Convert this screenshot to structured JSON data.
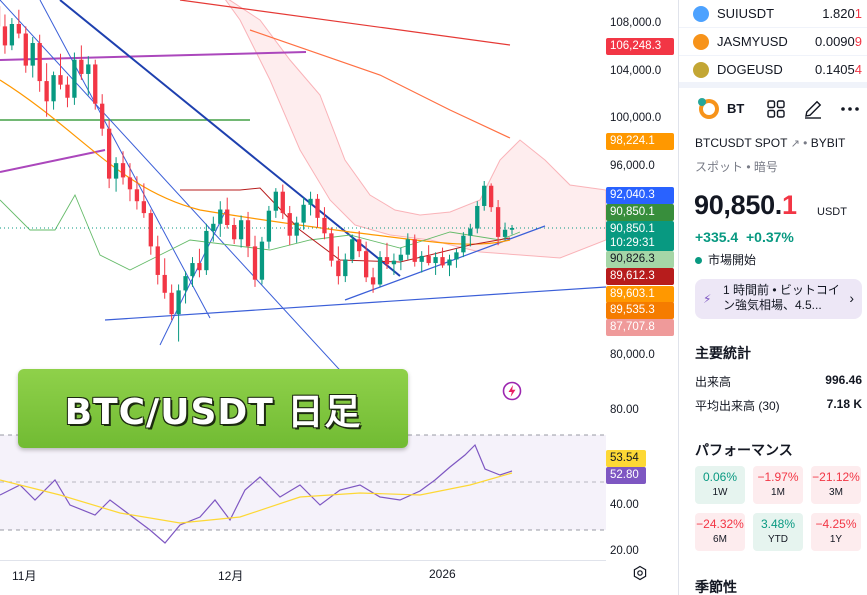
{
  "watchlist": [
    {
      "symbol": "SUIUSDT",
      "price_main": "1.820",
      "price_tail": "1",
      "icon": "sui-logo-icon",
      "color": "#4da2ff"
    },
    {
      "symbol": "JASMYUSD",
      "price_main": "0.0090",
      "price_tail": "9",
      "icon": "jasmy-logo-icon",
      "color": "#f7931a"
    },
    {
      "symbol": "DOGEUSD",
      "price_main": "0.1405",
      "price_tail": "4",
      "icon": "doge-logo-icon",
      "color": "#c3a634"
    }
  ],
  "symbol": {
    "short": "BT",
    "full": "BTCUSDT SPOT",
    "exchange": "BYBIT",
    "subtitle": "スポット • 暗号",
    "price_main": "90,850.",
    "price_tail": "1",
    "currency": "USDT",
    "change": "+335.4",
    "change_pct": "+0.37%",
    "market_status": "市場開始"
  },
  "news": {
    "text": "1 時間前 • ビットコイン強気相場、4.5..."
  },
  "key_stats": {
    "title": "主要統計",
    "rows": [
      {
        "label": "出来高",
        "value": "996.46"
      },
      {
        "label": "平均出来高 (30)",
        "value": "7.18 K"
      }
    ]
  },
  "performance": {
    "title": "パフォーマンス",
    "tiles": [
      {
        "value": "0.06%",
        "label": "1W",
        "dir": "pos"
      },
      {
        "value": "−1.97%",
        "label": "1M",
        "dir": "neg"
      },
      {
        "value": "−21.12%",
        "label": "3M",
        "dir": "neg"
      },
      {
        "value": "−24.32%",
        "label": "6M",
        "dir": "neg"
      },
      {
        "value": "3.48%",
        "label": "YTD",
        "dir": "pos"
      },
      {
        "value": "−4.25%",
        "label": "1Y",
        "dir": "neg"
      }
    ]
  },
  "seasonality": {
    "title": "季節性"
  },
  "overlay_title": "BTC/USDT 日足",
  "price_axis": {
    "ticks": [
      "108,000.0",
      "104,000.0",
      "100,000.0",
      "96,000.0",
      "80,000.0"
    ],
    "badges": [
      {
        "text": "106,248.3",
        "color": "#f23645"
      },
      {
        "text": "98,224.1",
        "color": "#ff9800"
      },
      {
        "text": "92,040.3",
        "color": "#2962ff"
      },
      {
        "text": "90,850.1",
        "color": "#388e3c"
      },
      {
        "text": "90,850.1",
        "text2": "10:29:31",
        "color": "#089981"
      },
      {
        "text": "90,826.3",
        "color": "#a5d6a7",
        "dark": true
      },
      {
        "text": "89,612.3",
        "color": "#b71c1c"
      },
      {
        "text": "89,603.1",
        "color": "#ff9800"
      },
      {
        "text": "89,535.3",
        "color": "#f57c00"
      },
      {
        "text": "87,707.8",
        "color": "#ef9a9a"
      }
    ]
  },
  "rsi_axis": {
    "ticks": [
      "80.00",
      "40.00",
      "20.00"
    ],
    "badges": [
      {
        "text": "53.54",
        "color": "#fdd835",
        "dark": true
      },
      {
        "text": "52.80",
        "color": "#7e57c2"
      }
    ]
  },
  "time_axis": [
    "11月",
    "12月",
    "2026"
  ],
  "chart_data": {
    "type": "candlestick",
    "ylim": [
      76000,
      110000
    ],
    "price_ticks": [
      108000,
      104000,
      100000,
      96000,
      80000
    ],
    "x_labels": [
      "11月",
      "12月",
      "2026"
    ],
    "candles": [
      [
        109500,
        110000,
        107000,
        107800
      ],
      [
        107800,
        108800,
        105500,
        106200
      ],
      [
        106200,
        108500,
        105800,
        108000
      ],
      [
        108000,
        109200,
        106800,
        107200
      ],
      [
        107200,
        107800,
        103900,
        104500
      ],
      [
        104500,
        106900,
        103500,
        106400
      ],
      [
        106400,
        107100,
        102300,
        103200
      ],
      [
        103200,
        104700,
        100200,
        101500
      ],
      [
        101500,
        104000,
        100800,
        103700
      ],
      [
        103700,
        105500,
        102500,
        102900
      ],
      [
        102900,
        103600,
        101000,
        101800
      ],
      [
        101800,
        105600,
        101200,
        105000
      ],
      [
        105000,
        106200,
        103300,
        103800
      ],
      [
        103800,
        105300,
        102000,
        104600
      ],
      [
        104600,
        105000,
        100800,
        101300
      ],
      [
        101300,
        102100,
        98600,
        99200
      ],
      [
        99200,
        99900,
        94200,
        95000
      ],
      [
        95000,
        96800,
        93900,
        96300
      ],
      [
        96300,
        97300,
        94500,
        95100
      ],
      [
        95100,
        96300,
        93100,
        94100
      ],
      [
        94100,
        95200,
        92400,
        93100
      ],
      [
        93100,
        94600,
        91700,
        92100
      ],
      [
        92100,
        92400,
        88600,
        89300
      ],
      [
        89300,
        90200,
        86100,
        86900
      ],
      [
        86900,
        88300,
        84900,
        85400
      ],
      [
        85400,
        86100,
        83100,
        83600
      ],
      [
        83600,
        86100,
        81300,
        85600
      ],
      [
        85600,
        87200,
        84500,
        86800
      ],
      [
        86800,
        88400,
        85900,
        87900
      ],
      [
        87900,
        89100,
        86700,
        87300
      ],
      [
        87300,
        91200,
        86900,
        90600
      ],
      [
        90600,
        91800,
        89700,
        91200
      ],
      [
        91200,
        93100,
        90100,
        92400
      ],
      [
        92400,
        93400,
        90800,
        91100
      ],
      [
        91100,
        91700,
        89500,
        89900
      ],
      [
        89900,
        91900,
        89200,
        91500
      ],
      [
        91500,
        92200,
        88400,
        89300
      ],
      [
        89300,
        90200,
        85900,
        86500
      ],
      [
        86500,
        90100,
        86100,
        89700
      ],
      [
        89700,
        92700,
        89100,
        92300
      ],
      [
        92300,
        94200,
        91700,
        93900
      ],
      [
        93900,
        94500,
        91600,
        92100
      ],
      [
        92100,
        92700,
        89400,
        90200
      ],
      [
        90200,
        91800,
        89600,
        91300
      ],
      [
        91300,
        93400,
        90700,
        92800
      ],
      [
        92800,
        93900,
        91900,
        93300
      ],
      [
        93300,
        93700,
        90900,
        91700
      ],
      [
        91700,
        92600,
        89900,
        90400
      ],
      [
        90400,
        90900,
        87600,
        88100
      ],
      [
        88100,
        89300,
        86100,
        86800
      ],
      [
        86800,
        88700,
        86300,
        88200
      ],
      [
        88200,
        90300,
        87900,
        89900
      ],
      [
        89900,
        90600,
        88400,
        88900
      ],
      [
        88900,
        89700,
        86300,
        86700
      ],
      [
        86700,
        87500,
        85400,
        86100
      ],
      [
        86100,
        88900,
        85900,
        88400
      ],
      [
        88400,
        89600,
        87400,
        87800
      ],
      [
        87800,
        88700,
        86900,
        88100
      ],
      [
        88100,
        89200,
        87300,
        88600
      ],
      [
        88600,
        90400,
        88200,
        89900
      ],
      [
        89900,
        90300,
        87600,
        88000
      ],
      [
        88000,
        88900,
        87100,
        88500
      ],
      [
        88500,
        89400,
        87700,
        87900
      ],
      [
        87900,
        88800,
        86900,
        88400
      ],
      [
        88400,
        89200,
        87500,
        87700
      ],
      [
        87700,
        88600,
        86800,
        88200
      ],
      [
        88200,
        89100,
        87500,
        88800
      ],
      [
        88800,
        90500,
        88400,
        90200
      ],
      [
        90200,
        91200,
        89300,
        90800
      ],
      [
        90800,
        93100,
        90400,
        92700
      ],
      [
        92700,
        94800,
        92300,
        94400
      ],
      [
        94400,
        94600,
        92200,
        92600
      ],
      [
        92600,
        93200,
        89400,
        90100
      ],
      [
        90100,
        91300,
        89800,
        90700
      ],
      [
        90700,
        91100,
        90300,
        90850.1
      ]
    ]
  }
}
